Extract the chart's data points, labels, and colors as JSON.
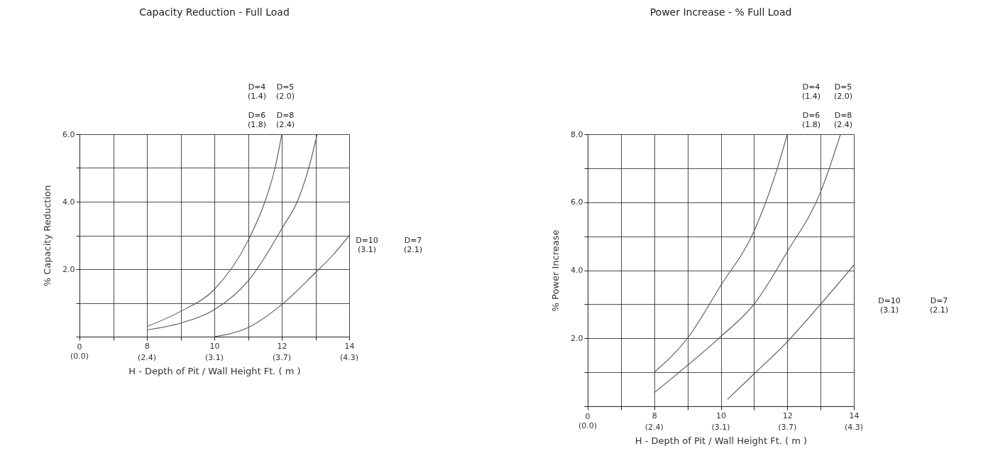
{
  "chart_data": [
    {
      "type": "line",
      "title": "Capacity Reduction - Full Load",
      "xlabel": "H - Depth of Pit / Wall Height  Ft. ( m )",
      "ylabel": "% Capacity Reduction",
      "annotations": [
        "D=4\n(1.4)",
        "D=5\n(2.0)",
        "D=6\n(1.8)",
        "D=8\n(2.4)",
        "D=10\n(3.1)",
        "D=7\n(2.1)",
        "0\n(0.0)",
        "(2.4)",
        "(3.1)",
        "(3.7)",
        "(4.3)"
      ],
      "xlim": [
        6,
        14
      ],
      "ylim": [
        0,
        6
      ],
      "xticks": [
        {
          "value": 6,
          "label": null
        },
        {
          "value": 7,
          "label": null
        },
        8,
        {
          "value": 9,
          "label": null
        },
        10,
        {
          "value": 11,
          "label": null
        },
        12,
        {
          "value": 13,
          "label": null
        },
        14
      ],
      "yticks": [
        {
          "value": 0,
          "label": null
        },
        {
          "value": 1,
          "label": null
        },
        {
          "value": 2,
          "label": "2.0"
        },
        {
          "value": 3,
          "label": null
        },
        {
          "value": 4,
          "label": "4.0"
        },
        {
          "value": 5,
          "label": null
        },
        {
          "value": 6,
          "label": "6.0"
        }
      ],
      "grid": true,
      "marker": "none",
      "line_style": "solid",
      "series": [
        {
          "color": "#555555",
          "x": [
            8,
            9,
            10,
            11,
            11.5,
            11.8,
            12
          ],
          "values": [
            0.3,
            0.75,
            1.4,
            2.85,
            4.0,
            5.0,
            6.0
          ]
        },
        {
          "color": "#555555",
          "x": [
            8,
            9,
            10,
            11,
            12,
            12.5,
            12.8,
            13.05
          ],
          "values": [
            0.2,
            0.4,
            0.8,
            1.65,
            3.2,
            4.1,
            5.0,
            6.0
          ]
        },
        {
          "color": "#555555",
          "x": [
            10,
            11,
            12,
            13,
            13.5,
            14
          ],
          "values": [
            0,
            0.27,
            0.95,
            1.9,
            2.4,
            3.0
          ]
        }
      ]
    },
    {
      "type": "line",
      "title": "Power Increase - % Full Load",
      "xlabel": "H - Depth of Pit / Wall Height  Ft. ( m )",
      "ylabel": "% Power Increase",
      "annotations": [
        "D=4\n(1.4)",
        "D=5\n(2.0)",
        "D=6\n(1.8)",
        "D=8\n(2.4)",
        "D=10\n(3.1)",
        "D=7\n(2.1)",
        "0\n(0.0)",
        "(2.4)",
        "(3.1)",
        "(3.7)",
        "(4.3)"
      ],
      "xlim": [
        6,
        14
      ],
      "ylim": [
        0,
        8
      ],
      "xticks": [
        {
          "value": 6,
          "label": null
        },
        {
          "value": 7,
          "label": null
        },
        8,
        {
          "value": 9,
          "label": null
        },
        10,
        {
          "value": 11,
          "label": null
        },
        12,
        {
          "value": 13,
          "label": null
        },
        14
      ],
      "yticks": [
        {
          "value": 0,
          "label": null
        },
        {
          "value": 1,
          "label": null
        },
        {
          "value": 2,
          "label": "2.0"
        },
        {
          "value": 3,
          "label": null
        },
        {
          "value": 4,
          "label": "4.0"
        },
        {
          "value": 5,
          "label": null
        },
        {
          "value": 6,
          "label": "6.0"
        },
        {
          "value": 7,
          "label": null
        },
        {
          "value": 8,
          "label": "8.0"
        }
      ],
      "grid": true,
      "marker": "none",
      "line_style": "solid",
      "series": [
        {
          "color": "#555555",
          "x": [
            8,
            9,
            10,
            11,
            11.7,
            12
          ],
          "values": [
            1.0,
            2.0,
            3.55,
            5.15,
            7.0,
            8.0
          ]
        },
        {
          "color": "#555555",
          "x": [
            8,
            8.75,
            10,
            11,
            12,
            13,
            13.6
          ],
          "values": [
            0.4,
            1.0,
            2.05,
            3.0,
            4.55,
            6.3,
            8.0
          ]
        },
        {
          "color": "#555555",
          "x": [
            10.2,
            11,
            12,
            13,
            14
          ],
          "values": [
            0.2,
            0.95,
            1.9,
            3.0,
            4.15
          ]
        }
      ]
    }
  ]
}
